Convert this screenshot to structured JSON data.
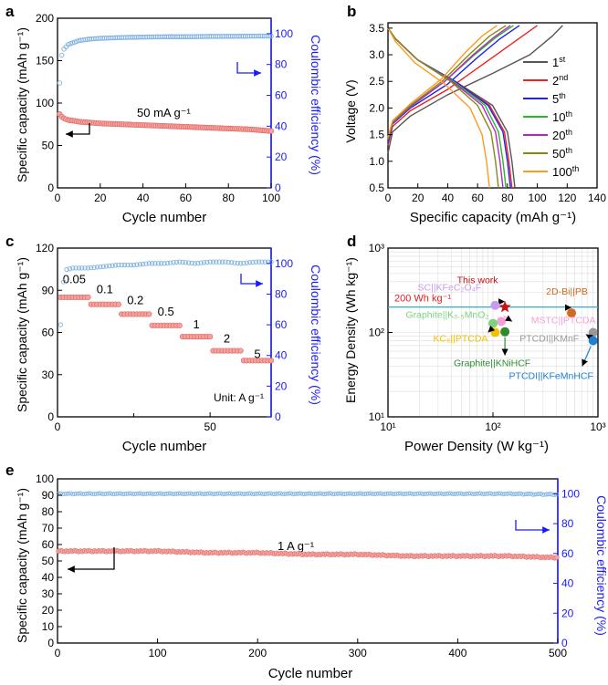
{
  "colors": {
    "axis": "#000000",
    "right_axis": "#1a1aff",
    "capacity_fill": "#f4a4a0",
    "capacity_stroke": "#e0605c",
    "efficiency": "#7fb2e0",
    "ref_line": "#33aacc",
    "ref_text": "#e02020"
  },
  "chart_data": [
    {
      "id": "a",
      "panel_label": "a",
      "type": "scatter",
      "xlabel": "Cycle number",
      "ylabel": "Specific capacity (mAh g⁻¹)",
      "y2label": "Coulombic efficiency (%)",
      "xlim": [
        0,
        100
      ],
      "ylim": [
        0,
        200
      ],
      "y2lim": [
        0,
        110
      ],
      "xticks": [
        0,
        20,
        40,
        60,
        80,
        100
      ],
      "yticks": [
        0,
        50,
        100,
        150,
        200
      ],
      "y2ticks": [
        0,
        20,
        40,
        60,
        80,
        100
      ],
      "annotation": "50 mA g⁻¹",
      "capacity": {
        "x": [
          1,
          2,
          3,
          5,
          8,
          10,
          15,
          20,
          30,
          40,
          50,
          60,
          70,
          80,
          90,
          100
        ],
        "y": [
          87,
          84,
          82,
          80,
          79,
          78,
          77,
          76,
          75,
          74,
          73,
          72,
          71,
          70,
          69,
          67
        ]
      },
      "efficiency": {
        "x": [
          1,
          2,
          3,
          5,
          8,
          10,
          15,
          20,
          30,
          40,
          50,
          60,
          70,
          80,
          90,
          100
        ],
        "y": [
          68,
          86,
          90,
          93,
          94.5,
          95.5,
          96.5,
          97,
          97.5,
          97.8,
          98,
          98,
          98.2,
          98.3,
          98.4,
          98.5
        ]
      }
    },
    {
      "id": "b",
      "panel_label": "b",
      "type": "line",
      "xlabel": "Specific capacity (mAh g⁻¹)",
      "ylabel": "Voltage (V)",
      "xlim": [
        0,
        140
      ],
      "ylim": [
        0.5,
        3.6
      ],
      "xticks": [
        0,
        20,
        40,
        60,
        80,
        100,
        120,
        140
      ],
      "yticks": [
        0.5,
        1.0,
        1.5,
        2.0,
        2.5,
        3.0,
        3.5
      ],
      "series": [
        {
          "name": "1",
          "sup": "st",
          "color": "#555555",
          "charge": [
            [
              0,
              1.15
            ],
            [
              3,
              1.55
            ],
            [
              15,
              1.85
            ],
            [
              40,
              2.25
            ],
            [
              70,
              2.65
            ],
            [
              95,
              3.0
            ],
            [
              110,
              3.35
            ],
            [
              117,
              3.55
            ]
          ],
          "discharge": [
            [
              0,
              3.5
            ],
            [
              5,
              3.3
            ],
            [
              20,
              2.9
            ],
            [
              45,
              2.5
            ],
            [
              70,
              2.05
            ],
            [
              80,
              1.55
            ],
            [
              83,
              1.0
            ],
            [
              85,
              0.5
            ]
          ]
        },
        {
          "name": "2",
          "sup": "nd",
          "color": "#ee2222",
          "charge": [
            [
              0,
              1.3
            ],
            [
              3,
              1.65
            ],
            [
              15,
              1.95
            ],
            [
              40,
              2.35
            ],
            [
              65,
              2.85
            ],
            [
              85,
              3.25
            ],
            [
              100,
              3.55
            ]
          ],
          "discharge": [
            [
              0,
              3.5
            ],
            [
              5,
              3.3
            ],
            [
              20,
              2.9
            ],
            [
              45,
              2.5
            ],
            [
              68,
              2.05
            ],
            [
              78,
              1.55
            ],
            [
              81,
              1.0
            ],
            [
              83,
              0.5
            ]
          ]
        },
        {
          "name": "5",
          "sup": "th",
          "color": "#2222ee",
          "charge": [
            [
              0,
              1.35
            ],
            [
              3,
              1.7
            ],
            [
              15,
              2.0
            ],
            [
              40,
              2.45
            ],
            [
              60,
              2.95
            ],
            [
              75,
              3.3
            ],
            [
              88,
              3.55
            ]
          ],
          "discharge": [
            [
              0,
              3.5
            ],
            [
              5,
              3.3
            ],
            [
              20,
              2.9
            ],
            [
              45,
              2.5
            ],
            [
              67,
              2.05
            ],
            [
              77,
              1.55
            ],
            [
              80,
              1.0
            ],
            [
              82,
              0.5
            ]
          ]
        },
        {
          "name": "10",
          "sup": "th",
          "color": "#22bb22",
          "charge": [
            [
              0,
              1.4
            ],
            [
              3,
              1.72
            ],
            [
              15,
              2.02
            ],
            [
              38,
              2.5
            ],
            [
              58,
              3.0
            ],
            [
              72,
              3.32
            ],
            [
              84,
              3.55
            ]
          ],
          "discharge": [
            [
              0,
              3.5
            ],
            [
              5,
              3.3
            ],
            [
              20,
              2.9
            ],
            [
              44,
              2.5
            ],
            [
              65,
              2.05
            ],
            [
              74,
              1.55
            ],
            [
              77,
              1.0
            ],
            [
              79,
              0.5
            ]
          ]
        },
        {
          "name": "20",
          "sup": "th",
          "color": "#bb22cc",
          "charge": [
            [
              0,
              1.4
            ],
            [
              3,
              1.73
            ],
            [
              15,
              2.03
            ],
            [
              38,
              2.5
            ],
            [
              57,
              3.0
            ],
            [
              71,
              3.33
            ],
            [
              82,
              3.55
            ]
          ],
          "discharge": [
            [
              0,
              3.5
            ],
            [
              5,
              3.3
            ],
            [
              20,
              2.9
            ],
            [
              43,
              2.5
            ],
            [
              63,
              2.05
            ],
            [
              72,
              1.55
            ],
            [
              75,
              1.0
            ],
            [
              77,
              0.5
            ]
          ]
        },
        {
          "name": "50",
          "sup": "th",
          "color": "#888811",
          "charge": [
            [
              0,
              1.42
            ],
            [
              3,
              1.74
            ],
            [
              15,
              2.05
            ],
            [
              37,
              2.52
            ],
            [
              55,
              3.02
            ],
            [
              68,
              3.35
            ],
            [
              79,
              3.55
            ]
          ],
          "discharge": [
            [
              0,
              3.5
            ],
            [
              5,
              3.3
            ],
            [
              20,
              2.9
            ],
            [
              42,
              2.5
            ],
            [
              60,
              2.05
            ],
            [
              69,
              1.55
            ],
            [
              72,
              1.0
            ],
            [
              74,
              0.5
            ]
          ]
        },
        {
          "name": "100",
          "sup": "th",
          "color": "#ff9a22",
          "charge": [
            [
              0,
              1.45
            ],
            [
              3,
              1.76
            ],
            [
              15,
              2.08
            ],
            [
              36,
              2.55
            ],
            [
              52,
              3.05
            ],
            [
              63,
              3.35
            ],
            [
              73,
              3.55
            ]
          ],
          "discharge": [
            [
              0,
              3.5
            ],
            [
              5,
              3.25
            ],
            [
              18,
              2.85
            ],
            [
              38,
              2.45
            ],
            [
              55,
              2.0
            ],
            [
              63,
              1.5
            ],
            [
              66,
              1.0
            ],
            [
              68,
              0.5
            ]
          ]
        }
      ]
    },
    {
      "id": "c",
      "panel_label": "c",
      "type": "scatter",
      "xlabel": "Cycle number",
      "ylabel": "Specific capacity (mAh g⁻¹)",
      "y2label": "Coulombic efficiency (%)",
      "xlim": [
        0,
        70
      ],
      "ylim": [
        0,
        120
      ],
      "y2lim": [
        0,
        110
      ],
      "xticks": [
        0,
        50
      ],
      "xminor": [
        25
      ],
      "yticks": [
        0,
        30,
        60,
        90,
        120
      ],
      "y2ticks": [
        0,
        20,
        40,
        60,
        80,
        100
      ],
      "unit_label": "Unit: A g⁻¹",
      "rate_labels": [
        "0.05",
        "0.1",
        "0.2",
        "0.5",
        "1",
        "2",
        "5"
      ],
      "steps": [
        {
          "rate": "0.05",
          "x0": 1,
          "x1": 10,
          "y": 85,
          "ly": 95
        },
        {
          "rate": "0.1",
          "x0": 11,
          "x1": 20,
          "y": 80,
          "ly": 88
        },
        {
          "rate": "0.2",
          "x0": 21,
          "x1": 30,
          "y": 73,
          "ly": 80
        },
        {
          "rate": "0.5",
          "x0": 31,
          "x1": 40,
          "y": 65,
          "ly": 72
        },
        {
          "rate": "1",
          "x0": 41,
          "x1": 50,
          "y": 57,
          "ly": 63
        },
        {
          "rate": "2",
          "x0": 51,
          "x1": 60,
          "y": 47,
          "ly": 53
        },
        {
          "rate": "5",
          "x0": 61,
          "x1": 70,
          "y": 40,
          "ly": 42
        }
      ],
      "efficiency": {
        "x": [
          1,
          2,
          3,
          5,
          10,
          15,
          20,
          25,
          30,
          35,
          40,
          45,
          50,
          55,
          60,
          65,
          70
        ],
        "y": [
          60,
          88,
          96,
          97,
          97,
          98,
          99,
          99,
          100,
          100,
          101,
          100,
          101,
          101,
          100,
          101,
          101
        ]
      }
    },
    {
      "id": "d",
      "panel_label": "d",
      "type": "scatter",
      "xlabel": "Power Density (W kg⁻¹)",
      "ylabel": "Energy Density (Wh kg⁻¹)",
      "xscale": "log",
      "yscale": "log",
      "xlim": [
        10,
        1000
      ],
      "ylim": [
        10,
        1000
      ],
      "xticks": [
        "10¹",
        "10²",
        "10³"
      ],
      "yticks": [
        "10¹",
        "10²",
        "10³"
      ],
      "reference_line": {
        "label": "200 Wh kg⁻¹",
        "y": 200
      },
      "points": [
        {
          "label": "This work",
          "x": 130,
          "y": 200,
          "color": "#cc1111",
          "marker": "star"
        },
        {
          "label": "SC||KFeC₂O₄F",
          "x": 105,
          "y": 210,
          "color": "#c99af0",
          "marker": "circle"
        },
        {
          "label": "2D-Bi||PB",
          "x": 560,
          "y": 170,
          "color": "#d2691e",
          "marker": "circle"
        },
        {
          "label": "MSTC||PTCDA",
          "x": 120,
          "y": 135,
          "color": "#f4a0d8",
          "marker": "circle"
        },
        {
          "label": "Graphite||K₀.₅MnO₂",
          "x": 100,
          "y": 128,
          "color": "#7fd17f",
          "marker": "circle"
        },
        {
          "label": "KC₈||PTCDA",
          "x": 105,
          "y": 100,
          "color": "#f2c200",
          "marker": "circle"
        },
        {
          "label": "Graphite||KNiHCF",
          "x": 130,
          "y": 102,
          "color": "#2e8b2e",
          "marker": "circle"
        },
        {
          "label": "PTCDI||KMnF",
          "x": 900,
          "y": 100,
          "color": "#999999",
          "marker": "circle"
        },
        {
          "label": "PTCDI||KFeMnHCF",
          "x": 900,
          "y": 80,
          "color": "#1f7fd1",
          "marker": "circle"
        }
      ]
    },
    {
      "id": "e",
      "panel_label": "e",
      "type": "scatter",
      "xlabel": "Cycle number",
      "ylabel": "Specific capacity (mAh g⁻¹)",
      "y2label": "Coulombic efficiency (%)",
      "xlim": [
        0,
        500
      ],
      "ylim": [
        0,
        100
      ],
      "y2lim": [
        0,
        110
      ],
      "xticks": [
        0,
        100,
        200,
        300,
        400,
        500
      ],
      "yticks": [
        0,
        10,
        20,
        30,
        40,
        50,
        60,
        70,
        80,
        90,
        100
      ],
      "y2ticks": [
        0,
        20,
        40,
        60,
        80,
        100
      ],
      "annotation": "1 A g⁻¹",
      "capacity": {
        "x": [
          1,
          50,
          100,
          150,
          200,
          250,
          300,
          350,
          400,
          450,
          500
        ],
        "y": [
          56,
          56,
          56,
          55,
          55,
          54,
          54,
          53,
          53,
          53,
          52
        ]
      },
      "efficiency": {
        "x": [
          1,
          50,
          100,
          150,
          200,
          250,
          300,
          350,
          400,
          450,
          500
        ],
        "y": [
          100,
          100,
          100,
          100,
          100,
          100,
          100,
          100,
          100,
          100,
          99.5
        ]
      }
    }
  ]
}
